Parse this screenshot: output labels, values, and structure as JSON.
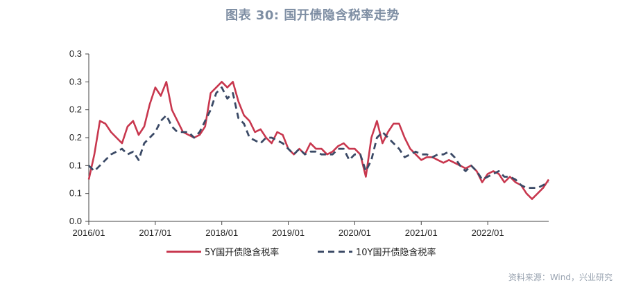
{
  "title": "图表 30: 国开债隐含税率走势",
  "source": "资料来源：Wind，兴业研究",
  "colors": {
    "series_5y": "#c8374e",
    "series_10y": "#3b4a66",
    "axis": "#444444"
  },
  "chart_data": {
    "type": "line",
    "title": "图表 30: 国开债隐含税率走势",
    "xlabel": "",
    "ylabel": "",
    "y_ticks": [
      "0.0",
      "0.1",
      "0.1",
      "0.2",
      "0.2",
      "0.3",
      "0.3"
    ],
    "y_tick_values": [
      0.0,
      0.05,
      0.1,
      0.15,
      0.2,
      0.25,
      0.3
    ],
    "ylim": [
      0,
      0.3
    ],
    "x_ticks": [
      "2016/01",
      "2017/01",
      "2018/01",
      "2019/01",
      "2020/01",
      "2021/01",
      "2022/01"
    ],
    "xlim": [
      "2016/01",
      "2022/12"
    ],
    "grid": false,
    "legend": "bottom-center",
    "series": [
      {
        "name": "5Y国开债隐含税率",
        "style": "solid",
        "x": [
          "2016/01",
          "2016/02",
          "2016/03",
          "2016/04",
          "2016/05",
          "2016/06",
          "2016/07",
          "2016/08",
          "2016/09",
          "2016/10",
          "2016/11",
          "2016/12",
          "2017/01",
          "2017/02",
          "2017/03",
          "2017/04",
          "2017/05",
          "2017/06",
          "2017/07",
          "2017/08",
          "2017/09",
          "2017/10",
          "2017/11",
          "2017/12",
          "2018/01",
          "2018/02",
          "2018/03",
          "2018/04",
          "2018/05",
          "2018/06",
          "2018/07",
          "2018/08",
          "2018/09",
          "2018/10",
          "2018/11",
          "2018/12",
          "2019/01",
          "2019/02",
          "2019/03",
          "2019/04",
          "2019/05",
          "2019/06",
          "2019/07",
          "2019/08",
          "2019/09",
          "2019/10",
          "2019/11",
          "2019/12",
          "2020/01",
          "2020/02",
          "2020/03",
          "2020/04",
          "2020/05",
          "2020/06",
          "2020/07",
          "2020/08",
          "2020/09",
          "2020/10",
          "2020/11",
          "2020/12",
          "2021/01",
          "2021/02",
          "2021/03",
          "2021/04",
          "2021/05",
          "2021/06",
          "2021/07",
          "2021/08",
          "2021/09",
          "2021/10",
          "2021/11",
          "2021/12",
          "2022/01",
          "2022/02",
          "2022/03",
          "2022/04",
          "2022/05",
          "2022/06",
          "2022/07",
          "2022/08",
          "2022/09",
          "2022/10",
          "2022/11",
          "2022/12"
        ],
        "values": [
          0.075,
          0.12,
          0.18,
          0.175,
          0.16,
          0.15,
          0.14,
          0.17,
          0.18,
          0.155,
          0.17,
          0.21,
          0.24,
          0.225,
          0.25,
          0.2,
          0.18,
          0.16,
          0.155,
          0.15,
          0.155,
          0.17,
          0.23,
          0.24,
          0.25,
          0.24,
          0.25,
          0.215,
          0.19,
          0.18,
          0.16,
          0.165,
          0.15,
          0.14,
          0.16,
          0.155,
          0.13,
          0.12,
          0.13,
          0.12,
          0.14,
          0.13,
          0.13,
          0.12,
          0.125,
          0.135,
          0.14,
          0.13,
          0.13,
          0.12,
          0.08,
          0.15,
          0.18,
          0.14,
          0.16,
          0.175,
          0.175,
          0.15,
          0.13,
          0.12,
          0.11,
          0.115,
          0.115,
          0.11,
          0.105,
          0.11,
          0.105,
          0.1,
          0.095,
          0.1,
          0.09,
          0.07,
          0.085,
          0.09,
          0.085,
          0.07,
          0.08,
          0.07,
          0.065,
          0.05,
          0.04,
          0.05,
          0.06,
          0.075
        ]
      },
      {
        "name": "10Y国开债隐含税率",
        "style": "dashed",
        "x": [
          "2016/01",
          "2016/02",
          "2016/03",
          "2016/04",
          "2016/05",
          "2016/06",
          "2016/07",
          "2016/08",
          "2016/09",
          "2016/10",
          "2016/11",
          "2016/12",
          "2017/01",
          "2017/02",
          "2017/03",
          "2017/04",
          "2017/05",
          "2017/06",
          "2017/07",
          "2017/08",
          "2017/09",
          "2017/10",
          "2017/11",
          "2017/12",
          "2018/01",
          "2018/02",
          "2018/03",
          "2018/04",
          "2018/05",
          "2018/06",
          "2018/07",
          "2018/08",
          "2018/09",
          "2018/10",
          "2018/11",
          "2018/12",
          "2019/01",
          "2019/02",
          "2019/03",
          "2019/04",
          "2019/05",
          "2019/06",
          "2019/07",
          "2019/08",
          "2019/09",
          "2019/10",
          "2019/11",
          "2019/12",
          "2020/01",
          "2020/02",
          "2020/03",
          "2020/04",
          "2020/05",
          "2020/06",
          "2020/07",
          "2020/08",
          "2020/09",
          "2020/10",
          "2020/11",
          "2020/12",
          "2021/01",
          "2021/02",
          "2021/03",
          "2021/04",
          "2021/05",
          "2021/06",
          "2021/07",
          "2021/08",
          "2021/09",
          "2021/10",
          "2021/11",
          "2021/12",
          "2022/01",
          "2022/02",
          "2022/03",
          "2022/04",
          "2022/05",
          "2022/06",
          "2022/07",
          "2022/08",
          "2022/09",
          "2022/10",
          "2022/11",
          "2022/12"
        ],
        "values": [
          0.1,
          0.09,
          0.1,
          0.11,
          0.12,
          0.125,
          0.13,
          0.12,
          0.125,
          0.11,
          0.14,
          0.15,
          0.16,
          0.18,
          0.19,
          0.17,
          0.16,
          0.16,
          0.16,
          0.15,
          0.16,
          0.18,
          0.2,
          0.23,
          0.24,
          0.22,
          0.23,
          0.185,
          0.175,
          0.15,
          0.145,
          0.14,
          0.15,
          0.15,
          0.145,
          0.14,
          0.13,
          0.12,
          0.13,
          0.12,
          0.125,
          0.125,
          0.12,
          0.12,
          0.12,
          0.13,
          0.13,
          0.11,
          0.12,
          0.12,
          0.09,
          0.11,
          0.15,
          0.16,
          0.15,
          0.14,
          0.13,
          0.115,
          0.12,
          0.125,
          0.12,
          0.12,
          0.115,
          0.12,
          0.12,
          0.125,
          0.115,
          0.1,
          0.09,
          0.1,
          0.09,
          0.075,
          0.08,
          0.085,
          0.09,
          0.08,
          0.08,
          0.075,
          0.065,
          0.06,
          0.06,
          0.06,
          0.065,
          0.07
        ]
      }
    ]
  }
}
